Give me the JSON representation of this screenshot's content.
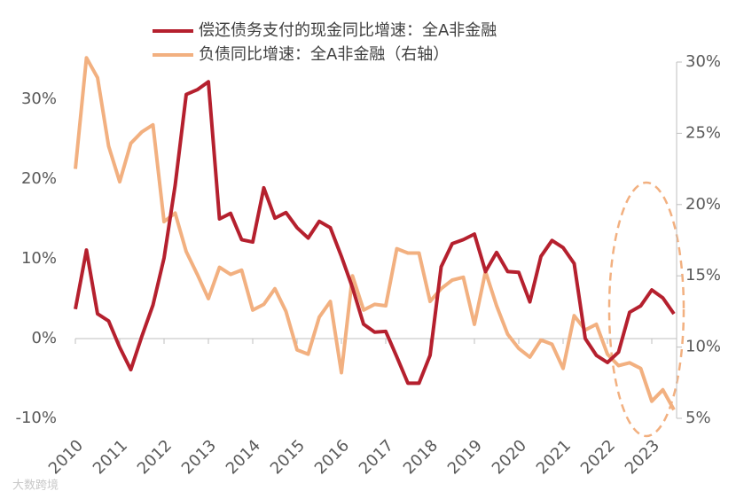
{
  "chart_data": {
    "type": "line",
    "categories": [
      "2010",
      null,
      null,
      null,
      "2011",
      null,
      null,
      null,
      "2012",
      null,
      null,
      null,
      "2013",
      null,
      null,
      null,
      "2014",
      null,
      null,
      null,
      "2015",
      null,
      null,
      null,
      "2016",
      null,
      null,
      null,
      "2017",
      null,
      null,
      null,
      "2018",
      null,
      null,
      null,
      "2019",
      null,
      null,
      null,
      "2020",
      null,
      null,
      null,
      "2021",
      null,
      null,
      null,
      "2022",
      null,
      null,
      null,
      "2023",
      null,
      null
    ],
    "series": [
      {
        "name": "偿还债务支付的现金同比增速：全A非金融",
        "color": "#b5202e",
        "axis": "y",
        "values": [
          3.7,
          11.1,
          3.1,
          2.2,
          -1.1,
          -3.9,
          0.3,
          4.2,
          10.1,
          19.2,
          30.6,
          31.2,
          32.2,
          15,
          15.7,
          12.4,
          12.1,
          18.9,
          15.1,
          15.8,
          13.9,
          12.6,
          14.7,
          13.9,
          10.3,
          6.4,
          1.8,
          0.8,
          0.9,
          -2.3,
          -5.6,
          -5.6,
          -2.1,
          9,
          11.9,
          12.4,
          13.1,
          8.4,
          10.8,
          8.4,
          8.3,
          4.6,
          10.3,
          12.3,
          11.4,
          9.4,
          0,
          -2.1,
          -3,
          -1.7,
          3.3,
          4.1,
          6.1,
          5.1,
          3.1
        ]
      },
      {
        "name": "负债同比增速：全A非金融（右轴）",
        "color": "#f2b080",
        "axis": "y2",
        "values": [
          22.5,
          30.3,
          28.9,
          24.1,
          21.6,
          24.3,
          25.1,
          25.6,
          18.8,
          19.4,
          16.7,
          15.1,
          13.4,
          15.6,
          15.1,
          15.4,
          12.6,
          13,
          14.1,
          12.5,
          9.8,
          9.5,
          12.1,
          13.2,
          8.2,
          15,
          12.6,
          13,
          12.9,
          16.9,
          16.6,
          16.6,
          13.2,
          14.1,
          14.7,
          14.9,
          11.6,
          15.3,
          12.9,
          10.9,
          9.9,
          9.3,
          10.5,
          10.2,
          8.5,
          12.2,
          11.2,
          11.6,
          9.5,
          8.7,
          8.9,
          8.5,
          6.2,
          7,
          5.6
        ]
      }
    ],
    "ylim": [
      -10,
      35
    ],
    "yticks": [
      {
        "value": -10,
        "label": "-10%"
      },
      {
        "value": 0,
        "label": "0%"
      },
      {
        "value": 10,
        "label": "10%"
      },
      {
        "value": 20,
        "label": "20%"
      },
      {
        "value": 30,
        "label": "30%"
      }
    ],
    "y2lim": [
      5,
      30
    ],
    "y2ticks": [
      {
        "value": 5,
        "label": "5%"
      },
      {
        "value": 10,
        "label": "10%"
      },
      {
        "value": 15,
        "label": "15%"
      },
      {
        "value": 20,
        "label": "20%"
      },
      {
        "value": 25,
        "label": "25%"
      },
      {
        "value": 30,
        "label": "30%"
      }
    ],
    "grid": false,
    "watermark": "大数跨境"
  }
}
